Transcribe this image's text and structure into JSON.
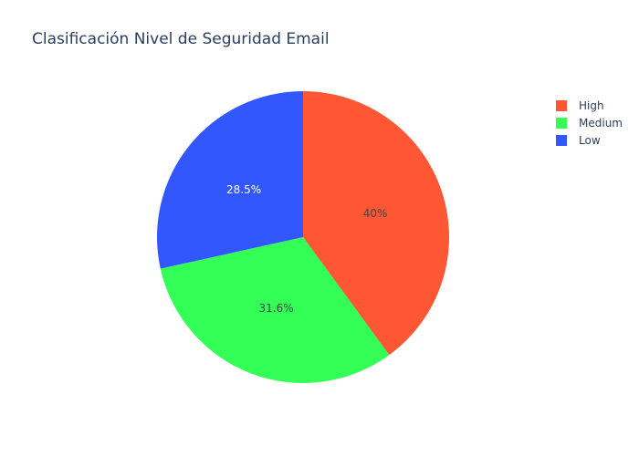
{
  "chart_data": {
    "type": "pie",
    "title": "Clasificación Nivel de Seguridad Email",
    "labels": [
      "High",
      "Medium",
      "Low"
    ],
    "values": [
      40.0,
      31.6,
      28.5
    ],
    "value_labels": [
      "40%",
      "31.6%",
      "28.5%"
    ],
    "colors": [
      "#ff5733",
      "#33ff57",
      "#3357ff"
    ],
    "label_colors": [
      "#444444",
      "#444444",
      "#ffffff"
    ],
    "direction": "clockwise",
    "start": "top",
    "legend_position": "top-right"
  }
}
